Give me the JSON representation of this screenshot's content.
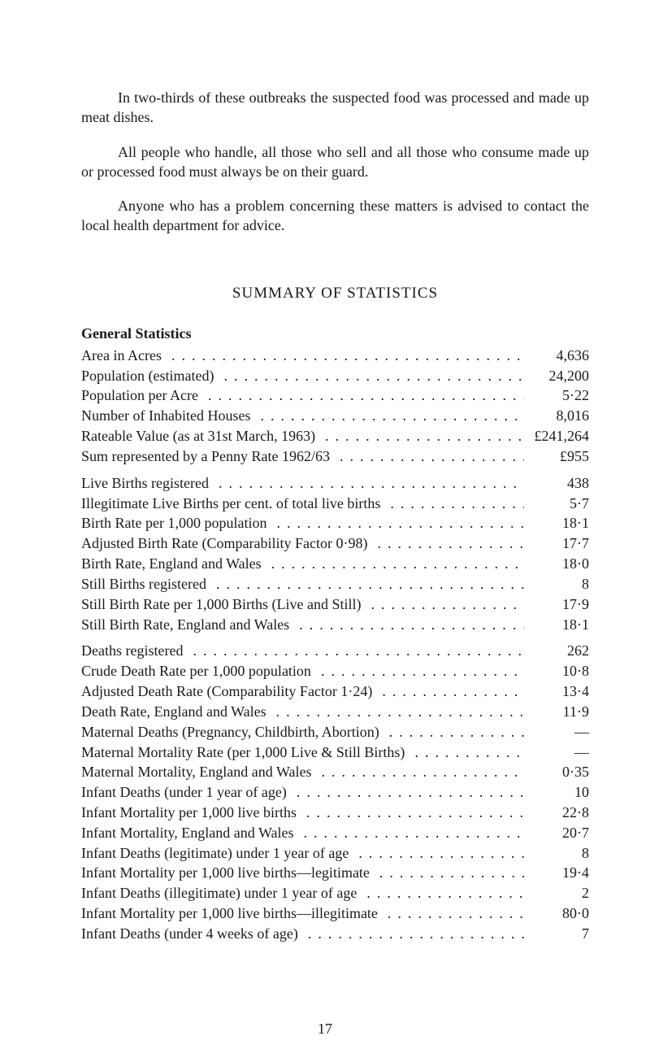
{
  "paragraphs": [
    "In two-thirds of these outbreaks the suspected food was processed and made up meat dishes.",
    "All people who handle, all those who sell and all those who consume made up or processed food must always be on their guard.",
    "Anyone who has a problem concerning these matters is advised to contact the local health department for advice."
  ],
  "section_title": "SUMMARY OF STATISTICS",
  "subsection_title": "General Statistics",
  "stats_block1": [
    {
      "label": "Area in Acres",
      "value": "4,636"
    },
    {
      "label": "Population (estimated)",
      "value": "24,200"
    },
    {
      "label": "Population per Acre",
      "value": "5·22"
    },
    {
      "label": "Number of Inhabited Houses",
      "value": "8,016"
    },
    {
      "label": "Rateable Value (as at 31st March, 1963)",
      "value": "£241,264"
    },
    {
      "label": "Sum represented by a Penny Rate 1962/63",
      "value": "£955"
    }
  ],
  "stats_block2": [
    {
      "label": "Live Births registered",
      "value": "438"
    },
    {
      "label": "Illegitimate Live Births per cent. of total live births",
      "value": "5·7"
    },
    {
      "label": "Birth Rate per 1,000 population",
      "value": "18·1"
    },
    {
      "label": "Adjusted Birth Rate (Comparability Factor 0·98)",
      "value": "17·7"
    },
    {
      "label": "Birth Rate, England and Wales",
      "value": "18·0"
    },
    {
      "label": "Still Births registered",
      "value": "8"
    },
    {
      "label": "Still Birth Rate per 1,000 Births (Live and Still)",
      "value": "17·9"
    },
    {
      "label": "Still Birth Rate, England and Wales",
      "value": "18·1"
    }
  ],
  "stats_block3": [
    {
      "label": "Deaths registered",
      "value": "262"
    },
    {
      "label": "Crude Death Rate per 1,000 population",
      "value": "10·8"
    },
    {
      "label": "Adjusted Death Rate (Comparability Factor 1·24)",
      "value": "13·4"
    },
    {
      "label": "Death Rate, England and Wales",
      "value": "11·9"
    },
    {
      "label": "Maternal Deaths (Pregnancy, Childbirth, Abortion)",
      "value": "—"
    },
    {
      "label": "Maternal Mortality Rate (per 1,000 Live & Still Births)",
      "value": "—"
    },
    {
      "label": "Maternal Mortality, England and Wales",
      "value": "0·35"
    },
    {
      "label": "Infant Deaths (under 1 year of age)",
      "value": "10"
    },
    {
      "label": "Infant Mortality per 1,000 live births",
      "value": "22·8"
    },
    {
      "label": "Infant Mortality, England and Wales",
      "value": "20·7"
    },
    {
      "label": "Infant Deaths (legitimate) under 1 year of age",
      "value": "8"
    },
    {
      "label": "Infant Mortality per 1,000 live births—legitimate",
      "value": "19·4"
    },
    {
      "label": "Infant Deaths (illegitimate) under 1 year of age",
      "value": "2"
    },
    {
      "label": "Infant Mortality per 1,000 live births—illegitimate",
      "value": "80·0"
    },
    {
      "label": "Infant Deaths (under 4 weeks of age)",
      "value": "7"
    }
  ],
  "page_number": "17",
  "style": {
    "background_color": "#ffffff",
    "text_color": "#1a1a1a",
    "body_fontsize": 18,
    "title_fontsize": 19,
    "font_family": "serif"
  }
}
